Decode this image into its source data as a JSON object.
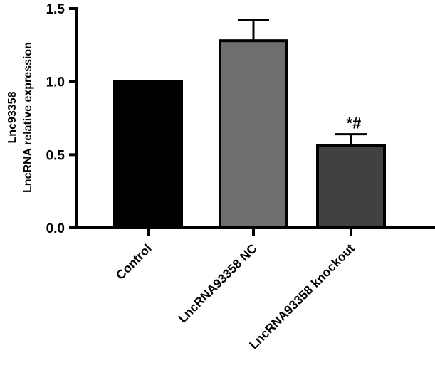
{
  "chart_data": {
    "type": "bar",
    "title": "",
    "ylabel_lines": [
      "Lnc93358",
      "LncRNA relative expression"
    ],
    "xlabel": "",
    "ylim": [
      0,
      1.5
    ],
    "yticks": [
      0.0,
      0.5,
      1.0,
      1.5
    ],
    "ytick_labels": [
      "0.0",
      "0.5",
      "1.0",
      "1.5"
    ],
    "categories": [
      "Control",
      "LncRNA93358 NC",
      "LncRNA93358 knockout"
    ],
    "values": [
      1.0,
      1.28,
      0.565
    ],
    "errors": [
      0,
      0.14,
      0.075
    ],
    "bar_colors": [
      "#000000",
      "#6e6e6e",
      "#414141"
    ],
    "annotations": [
      "",
      "",
      "*#"
    ],
    "grid": false,
    "legend": "none"
  }
}
